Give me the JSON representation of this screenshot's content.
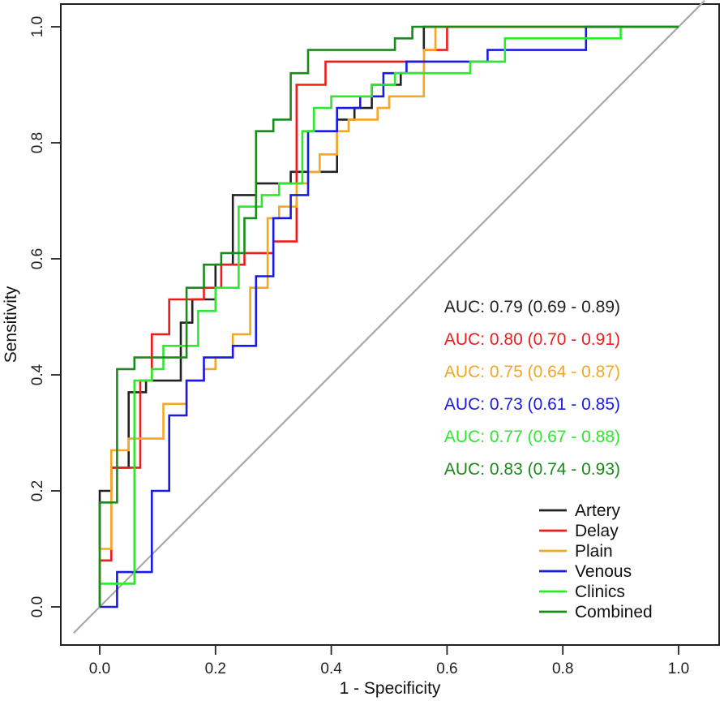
{
  "chart_data": {
    "type": "line",
    "title": "",
    "xlabel": "1 - Specificity",
    "ylabel": "Sensitivity",
    "xlim": [
      -0.05,
      1.05
    ],
    "ylim": [
      -0.04,
      1.04
    ],
    "x_ticks": [
      "0.0",
      "0.2",
      "0.4",
      "0.6",
      "0.8",
      "1.0"
    ],
    "y_ticks": [
      "0.0",
      "0.2",
      "0.4",
      "0.6",
      "0.8",
      "1.0"
    ],
    "diagonal": {
      "name": "reference",
      "color": "#a8a8a8"
    },
    "series": [
      {
        "name": "Artery",
        "color": "#222222",
        "points": [
          [
            0,
            0.1
          ],
          [
            0,
            0.2
          ],
          [
            0.02,
            0.2
          ],
          [
            0.02,
            0.24
          ],
          [
            0.05,
            0.24
          ],
          [
            0.05,
            0.37
          ],
          [
            0.08,
            0.37
          ],
          [
            0.08,
            0.39
          ],
          [
            0.14,
            0.39
          ],
          [
            0.14,
            0.49
          ],
          [
            0.16,
            0.49
          ],
          [
            0.16,
            0.53
          ],
          [
            0.2,
            0.53
          ],
          [
            0.2,
            0.59
          ],
          [
            0.23,
            0.59
          ],
          [
            0.23,
            0.71
          ],
          [
            0.25,
            0.71
          ],
          [
            0.25,
            0.71
          ],
          [
            0.27,
            0.71
          ],
          [
            0.27,
            0.73
          ],
          [
            0.33,
            0.73
          ],
          [
            0.33,
            0.75
          ],
          [
            0.41,
            0.75
          ],
          [
            0.41,
            0.84
          ],
          [
            0.44,
            0.84
          ],
          [
            0.44,
            0.86
          ],
          [
            0.47,
            0.86
          ],
          [
            0.47,
            0.9
          ],
          [
            0.52,
            0.9
          ],
          [
            0.52,
            0.92
          ],
          [
            0.56,
            0.92
          ],
          [
            0.56,
            1.0
          ],
          [
            1.0,
            1.0
          ]
        ]
      },
      {
        "name": "Delay",
        "color": "#ee1c1c",
        "points": [
          [
            0,
            0.0
          ],
          [
            0,
            0.08
          ],
          [
            0.02,
            0.08
          ],
          [
            0.02,
            0.24
          ],
          [
            0.07,
            0.24
          ],
          [
            0.07,
            0.39
          ],
          [
            0.09,
            0.39
          ],
          [
            0.09,
            0.47
          ],
          [
            0.12,
            0.47
          ],
          [
            0.12,
            0.53
          ],
          [
            0.18,
            0.53
          ],
          [
            0.18,
            0.55
          ],
          [
            0.21,
            0.55
          ],
          [
            0.21,
            0.59
          ],
          [
            0.25,
            0.59
          ],
          [
            0.25,
            0.61
          ],
          [
            0.3,
            0.61
          ],
          [
            0.3,
            0.63
          ],
          [
            0.34,
            0.63
          ],
          [
            0.34,
            0.9
          ],
          [
            0.39,
            0.9
          ],
          [
            0.39,
            0.94
          ],
          [
            0.56,
            0.94
          ],
          [
            0.56,
            0.96
          ],
          [
            0.6,
            0.96
          ],
          [
            0.6,
            1.0
          ],
          [
            1.0,
            1.0
          ]
        ]
      },
      {
        "name": "Plain",
        "color": "#f5a623",
        "points": [
          [
            0,
            0.0
          ],
          [
            0,
            0.1
          ],
          [
            0.02,
            0.1
          ],
          [
            0.02,
            0.27
          ],
          [
            0.05,
            0.27
          ],
          [
            0.05,
            0.29
          ],
          [
            0.11,
            0.29
          ],
          [
            0.11,
            0.35
          ],
          [
            0.15,
            0.35
          ],
          [
            0.15,
            0.39
          ],
          [
            0.18,
            0.39
          ],
          [
            0.18,
            0.41
          ],
          [
            0.2,
            0.41
          ],
          [
            0.2,
            0.43
          ],
          [
            0.23,
            0.43
          ],
          [
            0.23,
            0.47
          ],
          [
            0.26,
            0.47
          ],
          [
            0.26,
            0.55
          ],
          [
            0.29,
            0.55
          ],
          [
            0.29,
            0.67
          ],
          [
            0.31,
            0.67
          ],
          [
            0.31,
            0.69
          ],
          [
            0.34,
            0.69
          ],
          [
            0.34,
            0.73
          ],
          [
            0.36,
            0.73
          ],
          [
            0.36,
            0.75
          ],
          [
            0.38,
            0.75
          ],
          [
            0.38,
            0.78
          ],
          [
            0.41,
            0.78
          ],
          [
            0.41,
            0.82
          ],
          [
            0.43,
            0.82
          ],
          [
            0.43,
            0.84
          ],
          [
            0.48,
            0.84
          ],
          [
            0.48,
            0.86
          ],
          [
            0.5,
            0.86
          ],
          [
            0.5,
            0.88
          ],
          [
            0.56,
            0.88
          ],
          [
            0.56,
            0.96
          ],
          [
            0.58,
            0.96
          ],
          [
            0.58,
            1.0
          ],
          [
            1.0,
            1.0
          ]
        ]
      },
      {
        "name": "Venous",
        "color": "#1a1ae6",
        "points": [
          [
            0,
            0.0
          ],
          [
            0.03,
            0.0
          ],
          [
            0.03,
            0.06
          ],
          [
            0.09,
            0.06
          ],
          [
            0.09,
            0.2
          ],
          [
            0.12,
            0.2
          ],
          [
            0.12,
            0.33
          ],
          [
            0.15,
            0.33
          ],
          [
            0.15,
            0.39
          ],
          [
            0.18,
            0.39
          ],
          [
            0.18,
            0.43
          ],
          [
            0.23,
            0.43
          ],
          [
            0.23,
            0.45
          ],
          [
            0.27,
            0.45
          ],
          [
            0.27,
            0.57
          ],
          [
            0.3,
            0.57
          ],
          [
            0.3,
            0.67
          ],
          [
            0.33,
            0.67
          ],
          [
            0.33,
            0.71
          ],
          [
            0.36,
            0.71
          ],
          [
            0.36,
            0.82
          ],
          [
            0.41,
            0.82
          ],
          [
            0.41,
            0.86
          ],
          [
            0.45,
            0.86
          ],
          [
            0.45,
            0.88
          ],
          [
            0.49,
            0.88
          ],
          [
            0.49,
            0.92
          ],
          [
            0.53,
            0.92
          ],
          [
            0.53,
            0.94
          ],
          [
            0.67,
            0.94
          ],
          [
            0.67,
            0.96
          ],
          [
            0.84,
            0.96
          ],
          [
            0.84,
            1.0
          ],
          [
            1.0,
            1.0
          ]
        ]
      },
      {
        "name": "Clinics",
        "color": "#2ee82e",
        "points": [
          [
            0,
            0.0
          ],
          [
            0,
            0.04
          ],
          [
            0.06,
            0.04
          ],
          [
            0.06,
            0.39
          ],
          [
            0.09,
            0.39
          ],
          [
            0.09,
            0.41
          ],
          [
            0.11,
            0.41
          ],
          [
            0.11,
            0.45
          ],
          [
            0.17,
            0.45
          ],
          [
            0.17,
            0.51
          ],
          [
            0.2,
            0.51
          ],
          [
            0.2,
            0.55
          ],
          [
            0.24,
            0.55
          ],
          [
            0.24,
            0.69
          ],
          [
            0.28,
            0.69
          ],
          [
            0.28,
            0.71
          ],
          [
            0.31,
            0.71
          ],
          [
            0.31,
            0.73
          ],
          [
            0.35,
            0.73
          ],
          [
            0.35,
            0.82
          ],
          [
            0.37,
            0.82
          ],
          [
            0.37,
            0.86
          ],
          [
            0.4,
            0.86
          ],
          [
            0.4,
            0.88
          ],
          [
            0.47,
            0.88
          ],
          [
            0.47,
            0.9
          ],
          [
            0.51,
            0.9
          ],
          [
            0.51,
            0.92
          ],
          [
            0.64,
            0.92
          ],
          [
            0.64,
            0.94
          ],
          [
            0.7,
            0.94
          ],
          [
            0.7,
            0.98
          ],
          [
            0.9,
            0.98
          ],
          [
            0.9,
            1.0
          ],
          [
            1.0,
            1.0
          ]
        ]
      },
      {
        "name": "Combined",
        "color": "#1a8a1a",
        "points": [
          [
            0,
            0.0
          ],
          [
            0,
            0.18
          ],
          [
            0.03,
            0.18
          ],
          [
            0.03,
            0.41
          ],
          [
            0.06,
            0.41
          ],
          [
            0.06,
            0.43
          ],
          [
            0.15,
            0.43
          ],
          [
            0.15,
            0.55
          ],
          [
            0.18,
            0.55
          ],
          [
            0.18,
            0.59
          ],
          [
            0.21,
            0.59
          ],
          [
            0.21,
            0.61
          ],
          [
            0.25,
            0.61
          ],
          [
            0.25,
            0.67
          ],
          [
            0.27,
            0.67
          ],
          [
            0.27,
            0.82
          ],
          [
            0.3,
            0.82
          ],
          [
            0.3,
            0.84
          ],
          [
            0.33,
            0.84
          ],
          [
            0.33,
            0.92
          ],
          [
            0.36,
            0.92
          ],
          [
            0.36,
            0.96
          ],
          [
            0.51,
            0.96
          ],
          [
            0.51,
            0.98
          ],
          [
            0.54,
            0.98
          ],
          [
            0.54,
            1.0
          ],
          [
            1.0,
            1.0
          ]
        ]
      }
    ],
    "auc_labels": [
      {
        "text": "AUC: 0.79 (0.69 - 0.89)",
        "color": "#222222"
      },
      {
        "text": "AUC: 0.80 (0.70 - 0.91)",
        "color": "#ee1c1c"
      },
      {
        "text": "AUC: 0.75 (0.64 - 0.87)",
        "color": "#f5a623"
      },
      {
        "text": "AUC: 0.73 (0.61 - 0.85)",
        "color": "#1a1ae6"
      },
      {
        "text": "AUC: 0.77 (0.67 - 0.88)",
        "color": "#2ee82e"
      },
      {
        "text": "AUC: 0.83 (0.74 - 0.93)",
        "color": "#1a8a1a"
      }
    ],
    "legend": {
      "placement": "bottom-right",
      "entries": [
        "Artery",
        "Delay",
        "Plain",
        "Venous",
        "Clinics",
        "Combined"
      ]
    }
  }
}
